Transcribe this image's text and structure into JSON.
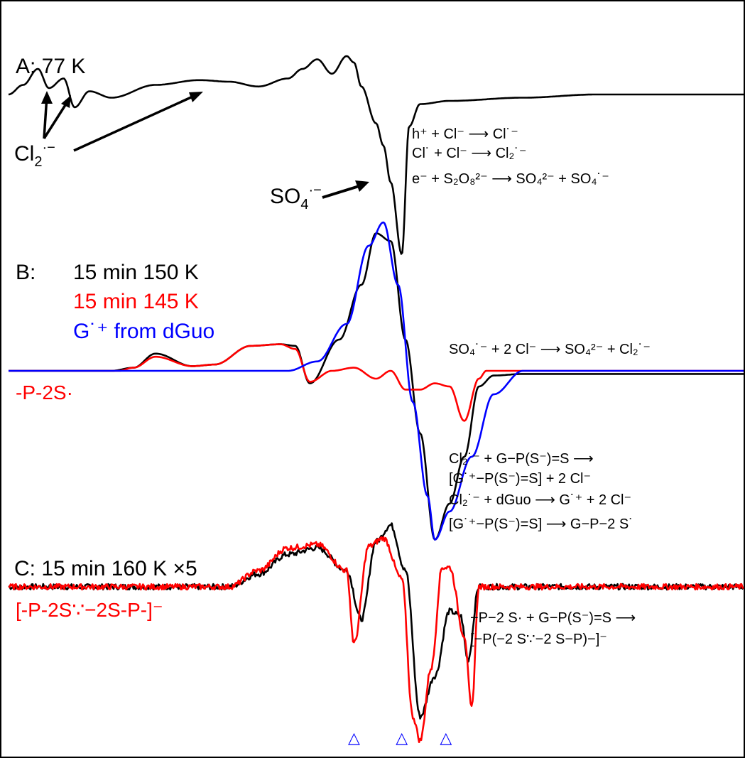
{
  "panels": {
    "A": {
      "label": "A: 77 K",
      "cl2_label": "Cl",
      "cl2_sub": "2",
      "cl2_sup": "·−",
      "so4_label": "SO",
      "so4_sub": "4",
      "so4_sup": "·−",
      "reactions": [
        "h⁺ + Cl⁻ ⟶ Cl˙⁻",
        "Cl˙ + Cl⁻ ⟶ Cl₂˙⁻",
        "e⁻ + S₂O₈²⁻ ⟶ SO₄²⁻ + SO₄˙⁻"
      ]
    },
    "B": {
      "label": "B:",
      "legend": [
        {
          "text": "15 min 150 K",
          "color": "#000000"
        },
        {
          "text": "15 min 145 K",
          "color": "#ff0000"
        },
        {
          "text": "G˙⁺ from dGuo",
          "color": "#0000ff"
        }
      ],
      "species_label": "-P-2S·",
      "species_color": "#ff0000",
      "reaction_top": "SO₄˙⁻ + 2 Cl⁻ ⟶ SO₄²⁻ + Cl₂˙⁻",
      "reactions": [
        "Cl₂˙⁻ + G−P(S⁻)=S ⟶",
        "[G˙⁺−P(S⁻)=S] + 2 Cl⁻",
        "Cl₂˙⁻ + dGuo ⟶ G˙⁺ + 2 Cl⁻",
        "[G˙⁺−P(S⁻)=S] ⟶ G−P−2 S˙"
      ]
    },
    "C": {
      "label": "C: 15 min 160 K ×5",
      "species_label": "[-P-2S∵−2S-P-]⁻",
      "species_color": "#ff0000",
      "reactions": [
        "−P−2 S· + G−P(S⁻)=S ⟶",
        "[−P(−2 S∵−2 S−P)−]⁻"
      ],
      "marker_symbol": "△",
      "marker_color": "#0000ff"
    }
  },
  "chart_data": {
    "type": "line",
    "title": "",
    "xlabel": "",
    "ylabel": "",
    "grid": false,
    "panels": [
      {
        "panel": "A",
        "series": [
          {
            "name": "A: 77 K",
            "color": "#000000",
            "shape": [
              [
                0.0,
                0.0
              ],
              [
                0.02,
                0.06
              ],
              [
                0.04,
                0.16
              ],
              [
                0.055,
                0.04
              ],
              [
                0.075,
                0.1
              ],
              [
                0.09,
                -0.08
              ],
              [
                0.11,
                0.02
              ],
              [
                0.14,
                -0.02
              ],
              [
                0.2,
                0.06
              ],
              [
                0.26,
                0.09
              ],
              [
                0.3,
                0.08
              ],
              [
                0.34,
                0.05
              ],
              [
                0.38,
                0.1
              ],
              [
                0.4,
                0.16
              ],
              [
                0.42,
                0.22
              ],
              [
                0.44,
                0.13
              ],
              [
                0.46,
                0.24
              ],
              [
                0.47,
                0.2
              ],
              [
                0.48,
                0.05
              ],
              [
                0.5,
                -0.18
              ],
              [
                0.51,
                -0.32
              ],
              [
                0.52,
                -0.55
              ],
              [
                0.535,
                -1.0
              ],
              [
                0.545,
                -0.2
              ],
              [
                0.56,
                -0.06
              ],
              [
                0.6,
                -0.04
              ],
              [
                0.7,
                -0.02
              ],
              [
                0.8,
                0.0
              ],
              [
                1.0,
                0.0
              ]
            ]
          }
        ]
      },
      {
        "panel": "B",
        "series": [
          {
            "name": "15 min 150 K",
            "color": "#000000",
            "shape": [
              [
                0.0,
                0.0
              ],
              [
                0.14,
                0.0
              ],
              [
                0.17,
                0.02
              ],
              [
                0.2,
                0.11
              ],
              [
                0.25,
                0.03
              ],
              [
                0.28,
                0.04
              ],
              [
                0.33,
                0.16
              ],
              [
                0.37,
                0.17
              ],
              [
                0.39,
                0.16
              ],
              [
                0.41,
                -0.08
              ],
              [
                0.45,
                0.2
              ],
              [
                0.48,
                0.55
              ],
              [
                0.5,
                0.88
              ],
              [
                0.52,
                0.83
              ],
              [
                0.54,
                0.2
              ],
              [
                0.56,
                -0.4
              ],
              [
                0.58,
                -1.08
              ],
              [
                0.6,
                -0.85
              ],
              [
                0.62,
                -0.55
              ],
              [
                0.64,
                -0.1
              ],
              [
                0.66,
                -0.03
              ],
              [
                0.7,
                -0.02
              ],
              [
                0.8,
                -0.02
              ],
              [
                1.0,
                -0.02
              ]
            ]
          },
          {
            "name": "15 min 145 K",
            "color": "#ff0000",
            "shape": [
              [
                0.0,
                0.0
              ],
              [
                0.15,
                0.0
              ],
              [
                0.17,
                0.02
              ],
              [
                0.2,
                0.09
              ],
              [
                0.25,
                0.03
              ],
              [
                0.28,
                0.04
              ],
              [
                0.33,
                0.16
              ],
              [
                0.37,
                0.17
              ],
              [
                0.39,
                0.14
              ],
              [
                0.41,
                -0.07
              ],
              [
                0.44,
                0.0
              ],
              [
                0.47,
                0.02
              ],
              [
                0.5,
                -0.05
              ],
              [
                0.52,
                0.0
              ],
              [
                0.54,
                -0.12
              ],
              [
                0.56,
                -0.12
              ],
              [
                0.58,
                -0.08
              ],
              [
                0.6,
                -0.1
              ],
              [
                0.62,
                -0.32
              ],
              [
                0.64,
                -0.05
              ],
              [
                0.65,
                0.0
              ],
              [
                1.0,
                0.0
              ]
            ]
          },
          {
            "name": "G˙⁺ from dGuo",
            "color": "#0000ff",
            "shape": [
              [
                0.0,
                0.0
              ],
              [
                0.38,
                0.0
              ],
              [
                0.42,
                0.06
              ],
              [
                0.46,
                0.3
              ],
              [
                0.49,
                0.8
              ],
              [
                0.51,
                0.95
              ],
              [
                0.53,
                0.55
              ],
              [
                0.55,
                -0.2
              ],
              [
                0.57,
                -0.8
              ],
              [
                0.58,
                -1.08
              ],
              [
                0.6,
                -0.9
              ],
              [
                0.63,
                -0.55
              ],
              [
                0.66,
                -0.15
              ],
              [
                0.7,
                0.0
              ],
              [
                1.0,
                0.0
              ]
            ]
          }
        ]
      },
      {
        "panel": "C",
        "series": [
          {
            "name": "15 min 160 K ×5",
            "color": "#000000",
            "shape": [
              [
                0.0,
                0.0
              ],
              [
                0.3,
                0.0
              ],
              [
                0.34,
                0.08
              ],
              [
                0.38,
                0.2
              ],
              [
                0.42,
                0.24
              ],
              [
                0.46,
                0.1
              ],
              [
                0.48,
                -0.2
              ],
              [
                0.5,
                0.28
              ],
              [
                0.52,
                0.38
              ],
              [
                0.54,
                0.1
              ],
              [
                0.56,
                -0.8
              ],
              [
                0.58,
                -0.55
              ],
              [
                0.6,
                -0.15
              ],
              [
                0.615,
                -0.18
              ],
              [
                0.625,
                -0.45
              ],
              [
                0.64,
                0.0
              ],
              [
                1.0,
                0.0
              ]
            ]
          },
          {
            "name": "[-P-2S∵−2S-P-]⁻",
            "color": "#ff0000",
            "shape": [
              [
                0.0,
                0.0
              ],
              [
                0.3,
                0.0
              ],
              [
                0.34,
                0.1
              ],
              [
                0.38,
                0.24
              ],
              [
                0.42,
                0.26
              ],
              [
                0.46,
                0.1
              ],
              [
                0.47,
                -0.35
              ],
              [
                0.49,
                0.25
              ],
              [
                0.51,
                0.3
              ],
              [
                0.535,
                0.05
              ],
              [
                0.55,
                -0.8
              ],
              [
                0.56,
                -0.95
              ],
              [
                0.575,
                -0.5
              ],
              [
                0.59,
                0.12
              ],
              [
                0.6,
                0.12
              ],
              [
                0.62,
                -0.3
              ],
              [
                0.63,
                -0.75
              ],
              [
                0.64,
                0.0
              ],
              [
                1.0,
                0.0
              ]
            ]
          }
        ],
        "markers": [
          0.47,
          0.535,
          0.595
        ]
      }
    ]
  }
}
